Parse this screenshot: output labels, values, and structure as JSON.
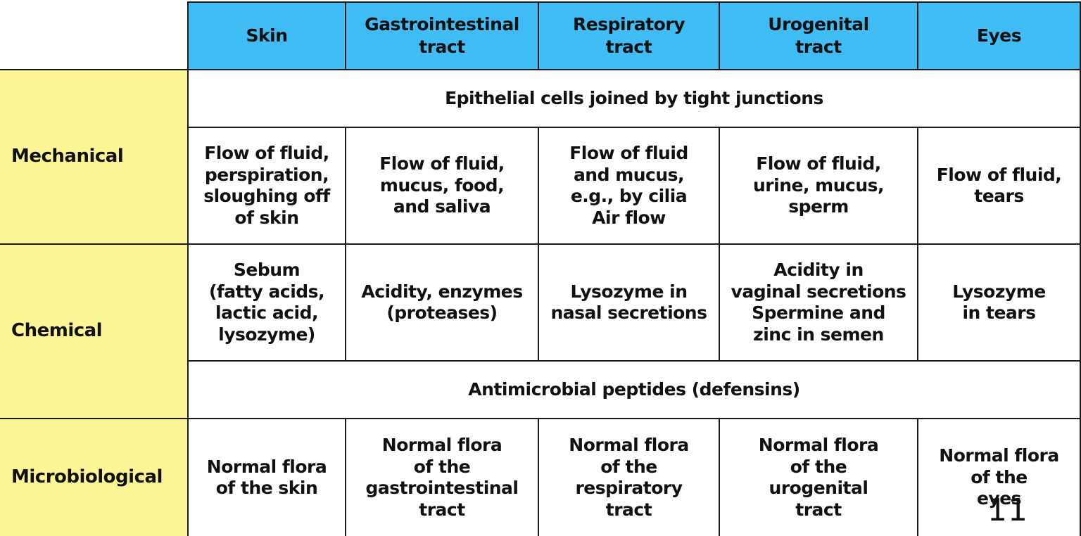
{
  "headers": [
    "Skin",
    "Gastrointestinal\ntract",
    "Respiratory\ntract",
    "Urogenital\ntract",
    "Eyes"
  ],
  "rows": {
    "mechanical": {
      "label": "Mechanical",
      "shared": "Epithelial cells joined by tight junctions",
      "cells": [
        "Flow of fluid,\nperspiration,\nsloughing off\nof skin",
        "Flow of fluid,\nmucus, food,\nand saliva",
        "Flow of fluid\nand mucus,\ne.g., by cilia\nAir flow",
        "Flow of fluid,\nurine, mucus,\nsperm",
        "Flow of fluid,\ntears"
      ]
    },
    "chemical": {
      "label": "Chemical",
      "cells": [
        "Sebum\n(fatty acids,\nlactic acid,\nlysozyme)",
        "Acidity, enzymes\n(proteases)",
        "Lysozyme in\nnasal secretions",
        "Acidity in\nvaginal secretions\nSpermine and\nzinc in semen",
        "Lysozyme\nin tears"
      ],
      "shared": "Antimicrobial peptides (defensins)"
    },
    "microbiological": {
      "label": "Microbiological",
      "cells": [
        "Normal flora\nof the skin",
        "Normal flora\nof the\ngastrointestinal\ntract",
        "Normal flora\nof the\nrespiratory\ntract",
        "Normal flora\nof the\nurogenital\ntract",
        "Normal flora\nof the\neyes"
      ]
    }
  },
  "page_number": "11",
  "colors": {
    "header_bg": "#40bdf5",
    "row_label_bg": "#fbf596",
    "border": "#1a1a1a",
    "cell_bg": "#ffffff"
  }
}
